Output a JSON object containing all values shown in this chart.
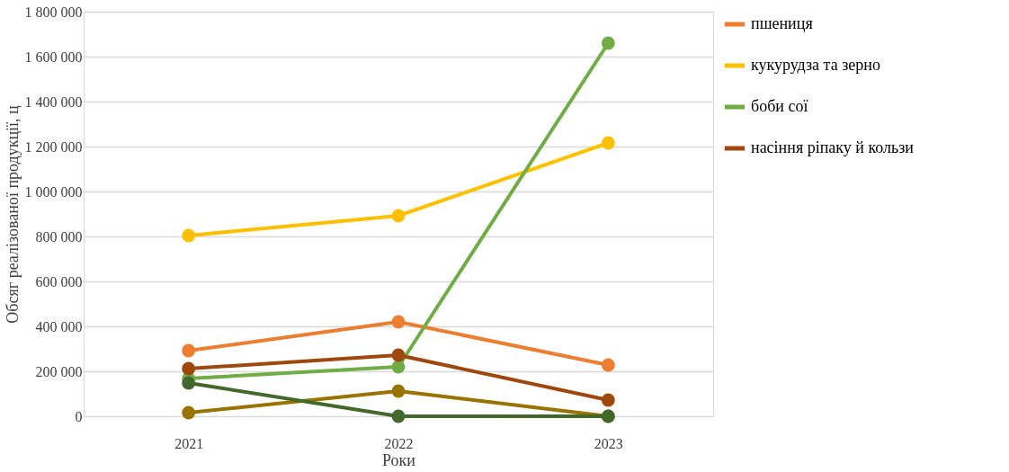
{
  "chart_data": {
    "type": "line",
    "xlabel": "Роки",
    "ylabel": "Обсяг реалізованої продукції, ц",
    "categories": [
      "2021",
      "2022",
      "2023"
    ],
    "series": [
      {
        "name": "пшениця",
        "color": "#ed7d31",
        "values": [
          292000,
          420000,
          228000
        ]
      },
      {
        "name": "кукурудза та зерно",
        "color": "#ffc000",
        "values": [
          804000,
          892000,
          1216000
        ]
      },
      {
        "name": "боби сої",
        "color": "#70ad47",
        "values": [
          168000,
          220000,
          1660000
        ]
      },
      {
        "name": "насіння ріпаку й кользи",
        "color": "#9e480e",
        "values": [
          212000,
          272000,
          72000
        ]
      },
      {
        "color": "#997300",
        "values": [
          16000,
          112000,
          0
        ]
      },
      {
        "color": "#43682b",
        "values": [
          148000,
          0,
          0
        ]
      }
    ],
    "ylim": [
      0,
      1800000
    ],
    "yticks": [
      {
        "value": 0,
        "label": "0"
      },
      {
        "value": 200000,
        "label": "200 000"
      },
      {
        "value": 400000,
        "label": "400 000"
      },
      {
        "value": 600000,
        "label": "600 000"
      },
      {
        "value": 800000,
        "label": "800 000"
      },
      {
        "value": 1000000,
        "label": "1 000 000"
      },
      {
        "value": 1200000,
        "label": "1 200 000"
      },
      {
        "value": 1400000,
        "label": "1 400 000"
      },
      {
        "value": 1600000,
        "label": "1 600 000"
      },
      {
        "value": 1800000,
        "label": "1 800 000"
      }
    ],
    "grid": "y",
    "legend": "right",
    "marker": "circle",
    "line_style": "solid"
  }
}
